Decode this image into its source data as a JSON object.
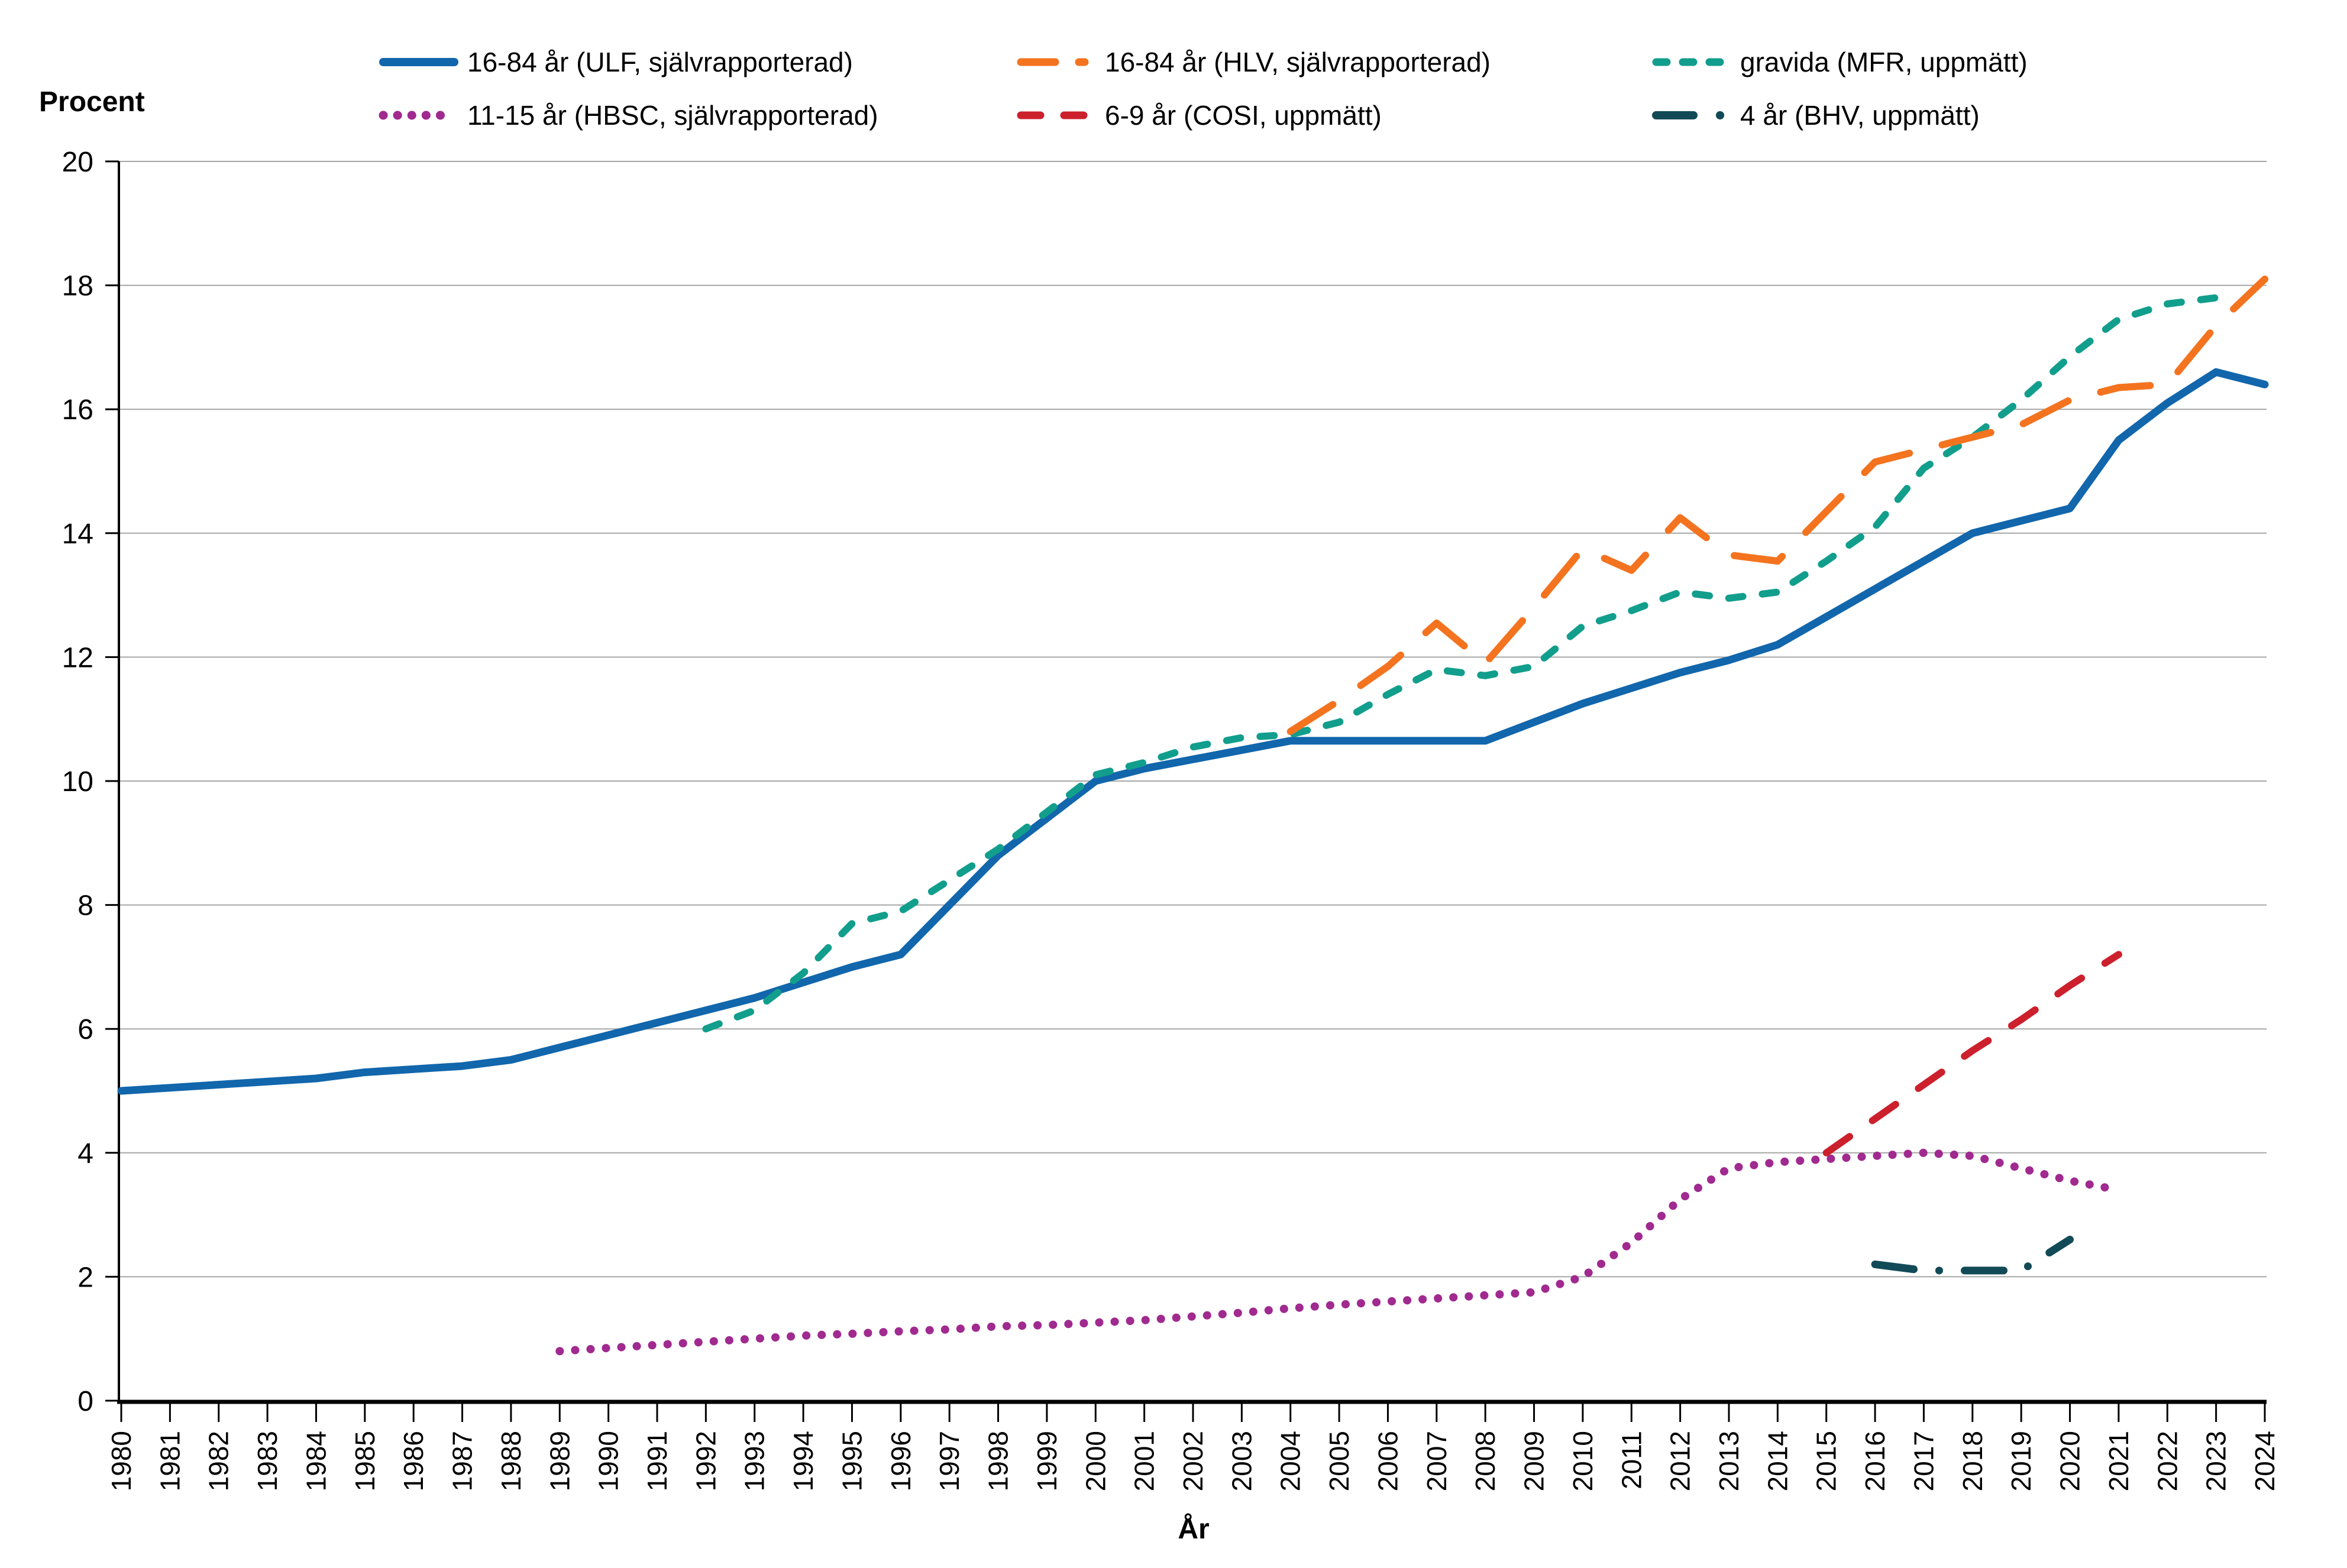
{
  "page": {
    "background": "#ffffff",
    "text_color": "#000000",
    "grid_color": "#a6a6a6",
    "axis_color": "#000000"
  },
  "chart_data": {
    "type": "line",
    "title": "",
    "xlabel": "År",
    "ylabel": "Procent",
    "xlim": [
      1980,
      2024
    ],
    "ylim": [
      0,
      20
    ],
    "x_tick_step": 1,
    "y_tick_step": 2,
    "grid": "horizontal",
    "legend_position": "top",
    "legend_columns": 3,
    "series": [
      {
        "name": "16-84 år (ULF, självrapporterad)",
        "slug": "ulf-16-84",
        "color": "#1166ac",
        "style": "solid",
        "stroke_width": 13,
        "points": [
          [
            1980,
            5.0
          ],
          [
            1981,
            5.05
          ],
          [
            1982,
            5.1
          ],
          [
            1983,
            5.15
          ],
          [
            1984,
            5.2
          ],
          [
            1985,
            5.3
          ],
          [
            1986,
            5.35
          ],
          [
            1987,
            5.4
          ],
          [
            1988,
            5.5
          ],
          [
            1989,
            5.7
          ],
          [
            1990,
            5.9
          ],
          [
            1991,
            6.1
          ],
          [
            1992,
            6.3
          ],
          [
            1993,
            6.5
          ],
          [
            1994,
            6.75
          ],
          [
            1995,
            7.0
          ],
          [
            1996,
            7.2
          ],
          [
            1997,
            8.0
          ],
          [
            1998,
            8.8
          ],
          [
            1999,
            9.4
          ],
          [
            2000,
            10.0
          ],
          [
            2001,
            10.2
          ],
          [
            2002,
            10.35
          ],
          [
            2003,
            10.5
          ],
          [
            2004,
            10.65
          ],
          [
            2005,
            10.65
          ],
          [
            2006,
            10.65
          ],
          [
            2007,
            10.65
          ],
          [
            2008,
            10.65
          ],
          [
            2009,
            10.95
          ],
          [
            2010,
            11.25
          ],
          [
            2011,
            11.5
          ],
          [
            2012,
            11.75
          ],
          [
            2013,
            11.95
          ],
          [
            2014,
            12.2
          ],
          [
            2015,
            12.65
          ],
          [
            2016,
            13.1
          ],
          [
            2017,
            13.55
          ],
          [
            2018,
            14.0
          ],
          [
            2019,
            14.2
          ],
          [
            2020,
            14.4
          ],
          [
            2021,
            15.5
          ],
          [
            2022,
            16.1
          ],
          [
            2023,
            16.6
          ],
          [
            2024,
            16.4
          ]
        ]
      },
      {
        "name": "16-84 år (HLV, självrapporterad)",
        "slug": "hlv-16-84",
        "color": "#f4731f",
        "style": "long-dash",
        "stroke_width": 12,
        "points": [
          [
            2004,
            10.8
          ],
          [
            2005,
            11.3
          ],
          [
            2006,
            11.85
          ],
          [
            2007,
            12.55
          ],
          [
            2008,
            11.9
          ],
          [
            2009,
            12.8
          ],
          [
            2010,
            13.75
          ],
          [
            2011,
            13.4
          ],
          [
            2012,
            14.25
          ],
          [
            2013,
            13.65
          ],
          [
            2014,
            13.55
          ],
          [
            2015,
            14.35
          ],
          [
            2016,
            15.15
          ],
          [
            2017,
            15.35
          ],
          [
            2018,
            15.55
          ],
          [
            2019,
            15.75
          ],
          [
            2020,
            16.15
          ],
          [
            2021,
            16.35
          ],
          [
            2022,
            16.4
          ],
          [
            2023,
            17.35
          ],
          [
            2024,
            18.1
          ]
        ]
      },
      {
        "name": "gravida (MFR, uppmätt)",
        "slug": "mfr-gravida",
        "color": "#129e8c",
        "style": "short-dash",
        "stroke_width": 12,
        "points": [
          [
            1992,
            6.0
          ],
          [
            1993,
            6.3
          ],
          [
            1994,
            6.9
          ],
          [
            1995,
            7.7
          ],
          [
            1996,
            7.9
          ],
          [
            1997,
            8.4
          ],
          [
            1998,
            8.9
          ],
          [
            1999,
            9.5
          ],
          [
            2000,
            10.1
          ],
          [
            2001,
            10.3
          ],
          [
            2002,
            10.55
          ],
          [
            2003,
            10.7
          ],
          [
            2004,
            10.75
          ],
          [
            2005,
            10.95
          ],
          [
            2006,
            11.4
          ],
          [
            2007,
            11.8
          ],
          [
            2008,
            11.7
          ],
          [
            2009,
            11.85
          ],
          [
            2010,
            12.5
          ],
          [
            2011,
            12.75
          ],
          [
            2012,
            13.05
          ],
          [
            2013,
            12.95
          ],
          [
            2014,
            13.05
          ],
          [
            2015,
            13.55
          ],
          [
            2016,
            14.1
          ],
          [
            2017,
            15.05
          ],
          [
            2018,
            15.55
          ],
          [
            2019,
            16.15
          ],
          [
            2020,
            16.85
          ],
          [
            2021,
            17.45
          ],
          [
            2022,
            17.7
          ],
          [
            2023,
            17.8
          ]
        ]
      },
      {
        "name": "11-15 år (HBSC, självrapporterad)",
        "slug": "hbsc-11-15",
        "color": "#a02a8f",
        "style": "dotted",
        "stroke_width": 14,
        "points": [
          [
            1989,
            0.8
          ],
          [
            1990,
            0.85
          ],
          [
            1991,
            0.9
          ],
          [
            1992,
            0.95
          ],
          [
            1993,
            1.0
          ],
          [
            1994,
            1.05
          ],
          [
            1995,
            1.08
          ],
          [
            1996,
            1.12
          ],
          [
            1997,
            1.15
          ],
          [
            1998,
            1.2
          ],
          [
            1999,
            1.22
          ],
          [
            2000,
            1.26
          ],
          [
            2001,
            1.3
          ],
          [
            2002,
            1.36
          ],
          [
            2003,
            1.42
          ],
          [
            2004,
            1.49
          ],
          [
            2005,
            1.55
          ],
          [
            2006,
            1.6
          ],
          [
            2007,
            1.65
          ],
          [
            2008,
            1.7
          ],
          [
            2009,
            1.75
          ],
          [
            2010,
            2.0
          ],
          [
            2011,
            2.55
          ],
          [
            2012,
            3.25
          ],
          [
            2013,
            3.75
          ],
          [
            2014,
            3.85
          ],
          [
            2015,
            3.9
          ],
          [
            2016,
            3.95
          ],
          [
            2017,
            4.0
          ],
          [
            2018,
            3.95
          ],
          [
            2019,
            3.75
          ],
          [
            2020,
            3.55
          ],
          [
            2021,
            3.4
          ]
        ]
      },
      {
        "name": "6-9 år (COSI, uppmätt)",
        "slug": "cosi-6-9",
        "color": "#cc202d",
        "style": "dash",
        "stroke_width": 12,
        "points": [
          [
            2015,
            4.0
          ],
          [
            2016,
            4.55
          ],
          [
            2017,
            5.1
          ],
          [
            2018,
            5.65
          ],
          [
            2019,
            6.15
          ],
          [
            2020,
            6.7
          ],
          [
            2021,
            7.2
          ]
        ]
      },
      {
        "name": "4 år (BHV, uppmätt)",
        "slug": "bhv-4",
        "color": "#124a57",
        "style": "dash-dot",
        "stroke_width": 13,
        "points": [
          [
            2016,
            2.2
          ],
          [
            2017,
            2.1
          ],
          [
            2018,
            2.1
          ],
          [
            2019,
            2.1
          ],
          [
            2020,
            2.6
          ]
        ]
      }
    ]
  }
}
